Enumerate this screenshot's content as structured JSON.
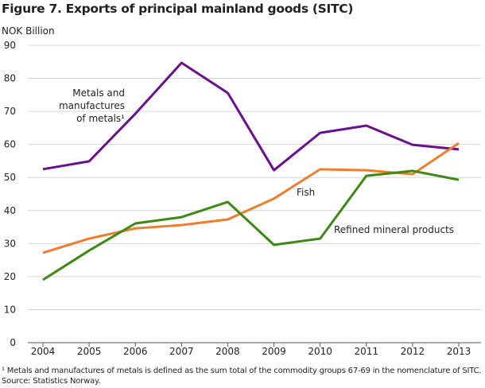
{
  "chart_data": {
    "type": "line",
    "title": "Figure 7. Exports of principal mainland goods (SITC)",
    "ylabel": "NOK Billion",
    "xlabel": "",
    "ylim": [
      0,
      90
    ],
    "yticks": [
      0,
      10,
      20,
      30,
      40,
      50,
      60,
      70,
      80,
      90
    ],
    "grid": true,
    "x": [
      "2004",
      "2005",
      "2006",
      "2007",
      "2008",
      "2009",
      "2010",
      "2011",
      "2012",
      "2013"
    ],
    "series": [
      {
        "name": "Metals and manufactures of metals¹",
        "label_lines": [
          "Metals and",
          "manufactures",
          "of metals¹"
        ],
        "color": "#6a0f8e",
        "values": [
          52.5,
          54.9,
          69.3,
          84.7,
          75.6,
          52.2,
          63.5,
          65.7,
          59.9,
          58.5
        ]
      },
      {
        "name": "Fish",
        "label_lines": [
          "Fish"
        ],
        "color": "#f07d2c",
        "values": [
          27.2,
          31.5,
          34.6,
          35.6,
          37.3,
          43.6,
          52.5,
          52.2,
          51.0,
          60.4
        ]
      },
      {
        "name": "Refined mineral products",
        "label_lines": [
          "Refined mineral products"
        ],
        "color": "#3c8a12",
        "values": [
          19.0,
          27.9,
          36.1,
          38.0,
          42.6,
          29.6,
          31.5,
          50.5,
          52.0,
          49.3
        ]
      }
    ]
  },
  "footnotes": {
    "note": "¹ Metals and manufactures of metals is defined as the sum total of the commodity groups 67-69 in the nomenclature of SITC.",
    "source": "Source: Statistics Norway."
  }
}
